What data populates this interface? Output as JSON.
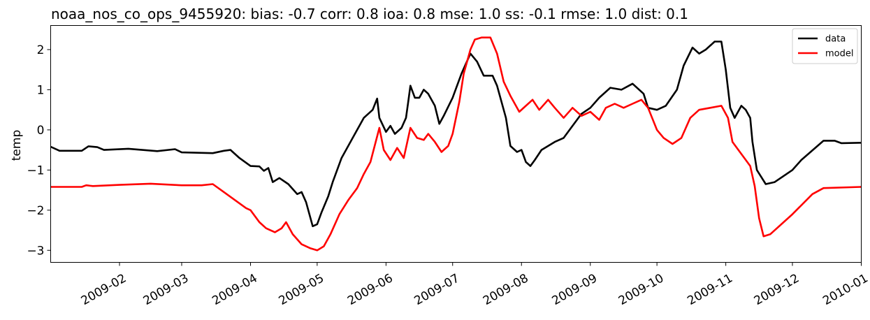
{
  "chart_data": {
    "type": "line",
    "title": "noaa_nos_co_ops_9455920: bias: -0.7  corr: 0.8  ioa: 0.8  mse: 1.0  ss: -0.1  rmse: 1.0  dist: 0.1",
    "xlabel": "",
    "ylabel": "temp",
    "xlim": [
      "2009-01-01",
      "2010-01-01"
    ],
    "ylim": [
      -3.3,
      2.6
    ],
    "x_ticks": [
      "2009-02",
      "2009-03",
      "2009-04",
      "2009-05",
      "2009-06",
      "2009-07",
      "2009-08",
      "2009-09",
      "2009-10",
      "2009-11",
      "2009-12",
      "2010-01"
    ],
    "y_ticks": [
      -3,
      -2,
      -1,
      0,
      1,
      2
    ],
    "y_tick_labels": [
      "−3",
      "−2",
      "−1",
      "0",
      "1",
      "2"
    ],
    "grid": false,
    "legend": "top-right",
    "series": [
      {
        "name": "data",
        "color": "#000000",
        "points": [
          [
            "2009-01-01",
            -0.42
          ],
          [
            "2009-01-05",
            -0.52
          ],
          [
            "2009-01-15",
            -0.52
          ],
          [
            "2009-01-18",
            -0.41
          ],
          [
            "2009-01-22",
            -0.43
          ],
          [
            "2009-01-25",
            -0.5
          ],
          [
            "2009-02-05",
            -0.47
          ],
          [
            "2009-02-18",
            -0.53
          ],
          [
            "2009-02-26",
            -0.48
          ],
          [
            "2009-03-01",
            -0.56
          ],
          [
            "2009-03-15",
            -0.58
          ],
          [
            "2009-03-20",
            -0.52
          ],
          [
            "2009-03-23",
            -0.5
          ],
          [
            "2009-03-27",
            -0.7
          ],
          [
            "2009-04-01",
            -0.9
          ],
          [
            "2009-04-05",
            -0.91
          ],
          [
            "2009-04-07",
            -1.02
          ],
          [
            "2009-04-09",
            -0.95
          ],
          [
            "2009-04-11",
            -1.3
          ],
          [
            "2009-04-14",
            -1.2
          ],
          [
            "2009-04-18",
            -1.35
          ],
          [
            "2009-04-22",
            -1.6
          ],
          [
            "2009-04-24",
            -1.55
          ],
          [
            "2009-04-26",
            -1.8
          ],
          [
            "2009-04-29",
            -2.4
          ],
          [
            "2009-05-01",
            -2.35
          ],
          [
            "2009-05-03",
            -2.05
          ],
          [
            "2009-05-06",
            -1.65
          ],
          [
            "2009-05-08",
            -1.3
          ],
          [
            "2009-05-12",
            -0.7
          ],
          [
            "2009-05-18",
            -0.1
          ],
          [
            "2009-05-22",
            0.3
          ],
          [
            "2009-05-26",
            0.5
          ],
          [
            "2009-05-28",
            0.78
          ],
          [
            "2009-05-29",
            0.3
          ],
          [
            "2009-06-01",
            -0.05
          ],
          [
            "2009-06-03",
            0.1
          ],
          [
            "2009-06-05",
            -0.1
          ],
          [
            "2009-06-08",
            0.05
          ],
          [
            "2009-06-10",
            0.3
          ],
          [
            "2009-06-11",
            0.7
          ],
          [
            "2009-06-12",
            1.1
          ],
          [
            "2009-06-14",
            0.8
          ],
          [
            "2009-06-16",
            0.8
          ],
          [
            "2009-06-18",
            1.0
          ],
          [
            "2009-06-20",
            0.9
          ],
          [
            "2009-06-23",
            0.6
          ],
          [
            "2009-06-25",
            0.15
          ],
          [
            "2009-06-27",
            0.35
          ],
          [
            "2009-07-01",
            0.8
          ],
          [
            "2009-07-05",
            1.4
          ],
          [
            "2009-07-09",
            1.9
          ],
          [
            "2009-07-12",
            1.7
          ],
          [
            "2009-07-15",
            1.35
          ],
          [
            "2009-07-19",
            1.35
          ],
          [
            "2009-07-21",
            1.1
          ],
          [
            "2009-07-25",
            0.3
          ],
          [
            "2009-07-27",
            -0.4
          ],
          [
            "2009-07-30",
            -0.55
          ],
          [
            "2009-08-01",
            -0.5
          ],
          [
            "2009-08-03",
            -0.8
          ],
          [
            "2009-08-05",
            -0.9
          ],
          [
            "2009-08-07",
            -0.75
          ],
          [
            "2009-08-10",
            -0.5
          ],
          [
            "2009-08-16",
            -0.3
          ],
          [
            "2009-08-20",
            -0.2
          ],
          [
            "2009-08-24",
            0.1
          ],
          [
            "2009-08-28",
            0.4
          ],
          [
            "2009-09-01",
            0.55
          ],
          [
            "2009-09-05",
            0.8
          ],
          [
            "2009-09-10",
            1.05
          ],
          [
            "2009-09-15",
            1.0
          ],
          [
            "2009-09-20",
            1.15
          ],
          [
            "2009-09-25",
            0.9
          ],
          [
            "2009-09-27",
            0.55
          ],
          [
            "2009-10-01",
            0.5
          ],
          [
            "2009-10-05",
            0.6
          ],
          [
            "2009-10-10",
            1.0
          ],
          [
            "2009-10-13",
            1.6
          ],
          [
            "2009-10-17",
            2.05
          ],
          [
            "2009-10-20",
            1.9
          ],
          [
            "2009-10-23",
            2.0
          ],
          [
            "2009-10-27",
            2.2
          ],
          [
            "2009-10-30",
            2.2
          ],
          [
            "2009-11-01",
            1.5
          ],
          [
            "2009-11-03",
            0.55
          ],
          [
            "2009-11-05",
            0.3
          ],
          [
            "2009-11-08",
            0.6
          ],
          [
            "2009-11-10",
            0.5
          ],
          [
            "2009-11-12",
            0.3
          ],
          [
            "2009-11-13",
            -0.3
          ],
          [
            "2009-11-15",
            -1.0
          ],
          [
            "2009-11-19",
            -1.35
          ],
          [
            "2009-11-23",
            -1.3
          ],
          [
            "2009-12-01",
            -1.0
          ],
          [
            "2009-12-05",
            -0.75
          ],
          [
            "2009-12-15",
            -0.27
          ],
          [
            "2009-12-20",
            -0.27
          ],
          [
            "2009-12-23",
            -0.33
          ],
          [
            "2010-01-01",
            -0.32
          ]
        ]
      },
      {
        "name": "model",
        "color": "#ff0000",
        "points": [
          [
            "2009-01-01",
            -1.42
          ],
          [
            "2009-01-15",
            -1.42
          ],
          [
            "2009-01-17",
            -1.38
          ],
          [
            "2009-01-20",
            -1.4
          ],
          [
            "2009-02-01",
            -1.37
          ],
          [
            "2009-02-15",
            -1.34
          ],
          [
            "2009-03-01",
            -1.38
          ],
          [
            "2009-03-10",
            -1.38
          ],
          [
            "2009-03-15",
            -1.35
          ],
          [
            "2009-03-20",
            -1.55
          ],
          [
            "2009-03-25",
            -1.75
          ],
          [
            "2009-03-30",
            -1.95
          ],
          [
            "2009-04-01",
            -2.0
          ],
          [
            "2009-04-05",
            -2.3
          ],
          [
            "2009-04-08",
            -2.45
          ],
          [
            "2009-04-12",
            -2.55
          ],
          [
            "2009-04-15",
            -2.45
          ],
          [
            "2009-04-17",
            -2.3
          ],
          [
            "2009-04-20",
            -2.6
          ],
          [
            "2009-04-24",
            -2.85
          ],
          [
            "2009-04-28",
            -2.95
          ],
          [
            "2009-05-01",
            -3.0
          ],
          [
            "2009-05-04",
            -2.9
          ],
          [
            "2009-05-07",
            -2.6
          ],
          [
            "2009-05-11",
            -2.1
          ],
          [
            "2009-05-15",
            -1.75
          ],
          [
            "2009-05-19",
            -1.45
          ],
          [
            "2009-05-22",
            -1.1
          ],
          [
            "2009-05-25",
            -0.8
          ],
          [
            "2009-05-29",
            0.05
          ],
          [
            "2009-05-31",
            -0.5
          ],
          [
            "2009-06-03",
            -0.75
          ],
          [
            "2009-06-06",
            -0.45
          ],
          [
            "2009-06-09",
            -0.7
          ],
          [
            "2009-06-12",
            0.05
          ],
          [
            "2009-06-15",
            -0.2
          ],
          [
            "2009-06-18",
            -0.25
          ],
          [
            "2009-06-20",
            -0.1
          ],
          [
            "2009-06-23",
            -0.3
          ],
          [
            "2009-06-26",
            -0.55
          ],
          [
            "2009-06-29",
            -0.4
          ],
          [
            "2009-07-01",
            -0.1
          ],
          [
            "2009-07-04",
            0.7
          ],
          [
            "2009-07-06",
            1.4
          ],
          [
            "2009-07-09",
            2.0
          ],
          [
            "2009-07-11",
            2.25
          ],
          [
            "2009-07-14",
            2.3
          ],
          [
            "2009-07-18",
            2.3
          ],
          [
            "2009-07-21",
            1.9
          ],
          [
            "2009-07-24",
            1.2
          ],
          [
            "2009-07-27",
            0.85
          ],
          [
            "2009-07-31",
            0.45
          ],
          [
            "2009-08-03",
            0.6
          ],
          [
            "2009-08-06",
            0.75
          ],
          [
            "2009-08-09",
            0.5
          ],
          [
            "2009-08-13",
            0.75
          ],
          [
            "2009-08-16",
            0.55
          ],
          [
            "2009-08-20",
            0.3
          ],
          [
            "2009-08-24",
            0.55
          ],
          [
            "2009-08-28",
            0.35
          ],
          [
            "2009-09-01",
            0.45
          ],
          [
            "2009-09-05",
            0.25
          ],
          [
            "2009-09-08",
            0.55
          ],
          [
            "2009-09-12",
            0.65
          ],
          [
            "2009-09-16",
            0.55
          ],
          [
            "2009-09-20",
            0.65
          ],
          [
            "2009-09-24",
            0.75
          ],
          [
            "2009-09-27",
            0.55
          ],
          [
            "2009-10-01",
            0.0
          ],
          [
            "2009-10-04",
            -0.2
          ],
          [
            "2009-10-08",
            -0.35
          ],
          [
            "2009-10-12",
            -0.2
          ],
          [
            "2009-10-16",
            0.3
          ],
          [
            "2009-10-20",
            0.5
          ],
          [
            "2009-10-25",
            0.55
          ],
          [
            "2009-10-30",
            0.6
          ],
          [
            "2009-11-02",
            0.3
          ],
          [
            "2009-11-04",
            -0.3
          ],
          [
            "2009-11-08",
            -0.6
          ],
          [
            "2009-11-12",
            -0.9
          ],
          [
            "2009-11-14",
            -1.4
          ],
          [
            "2009-11-16",
            -2.2
          ],
          [
            "2009-11-18",
            -2.65
          ],
          [
            "2009-11-21",
            -2.6
          ],
          [
            "2009-12-01",
            -2.1
          ],
          [
            "2009-12-10",
            -1.6
          ],
          [
            "2009-12-15",
            -1.45
          ],
          [
            "2010-01-01",
            -1.42
          ]
        ]
      }
    ]
  }
}
